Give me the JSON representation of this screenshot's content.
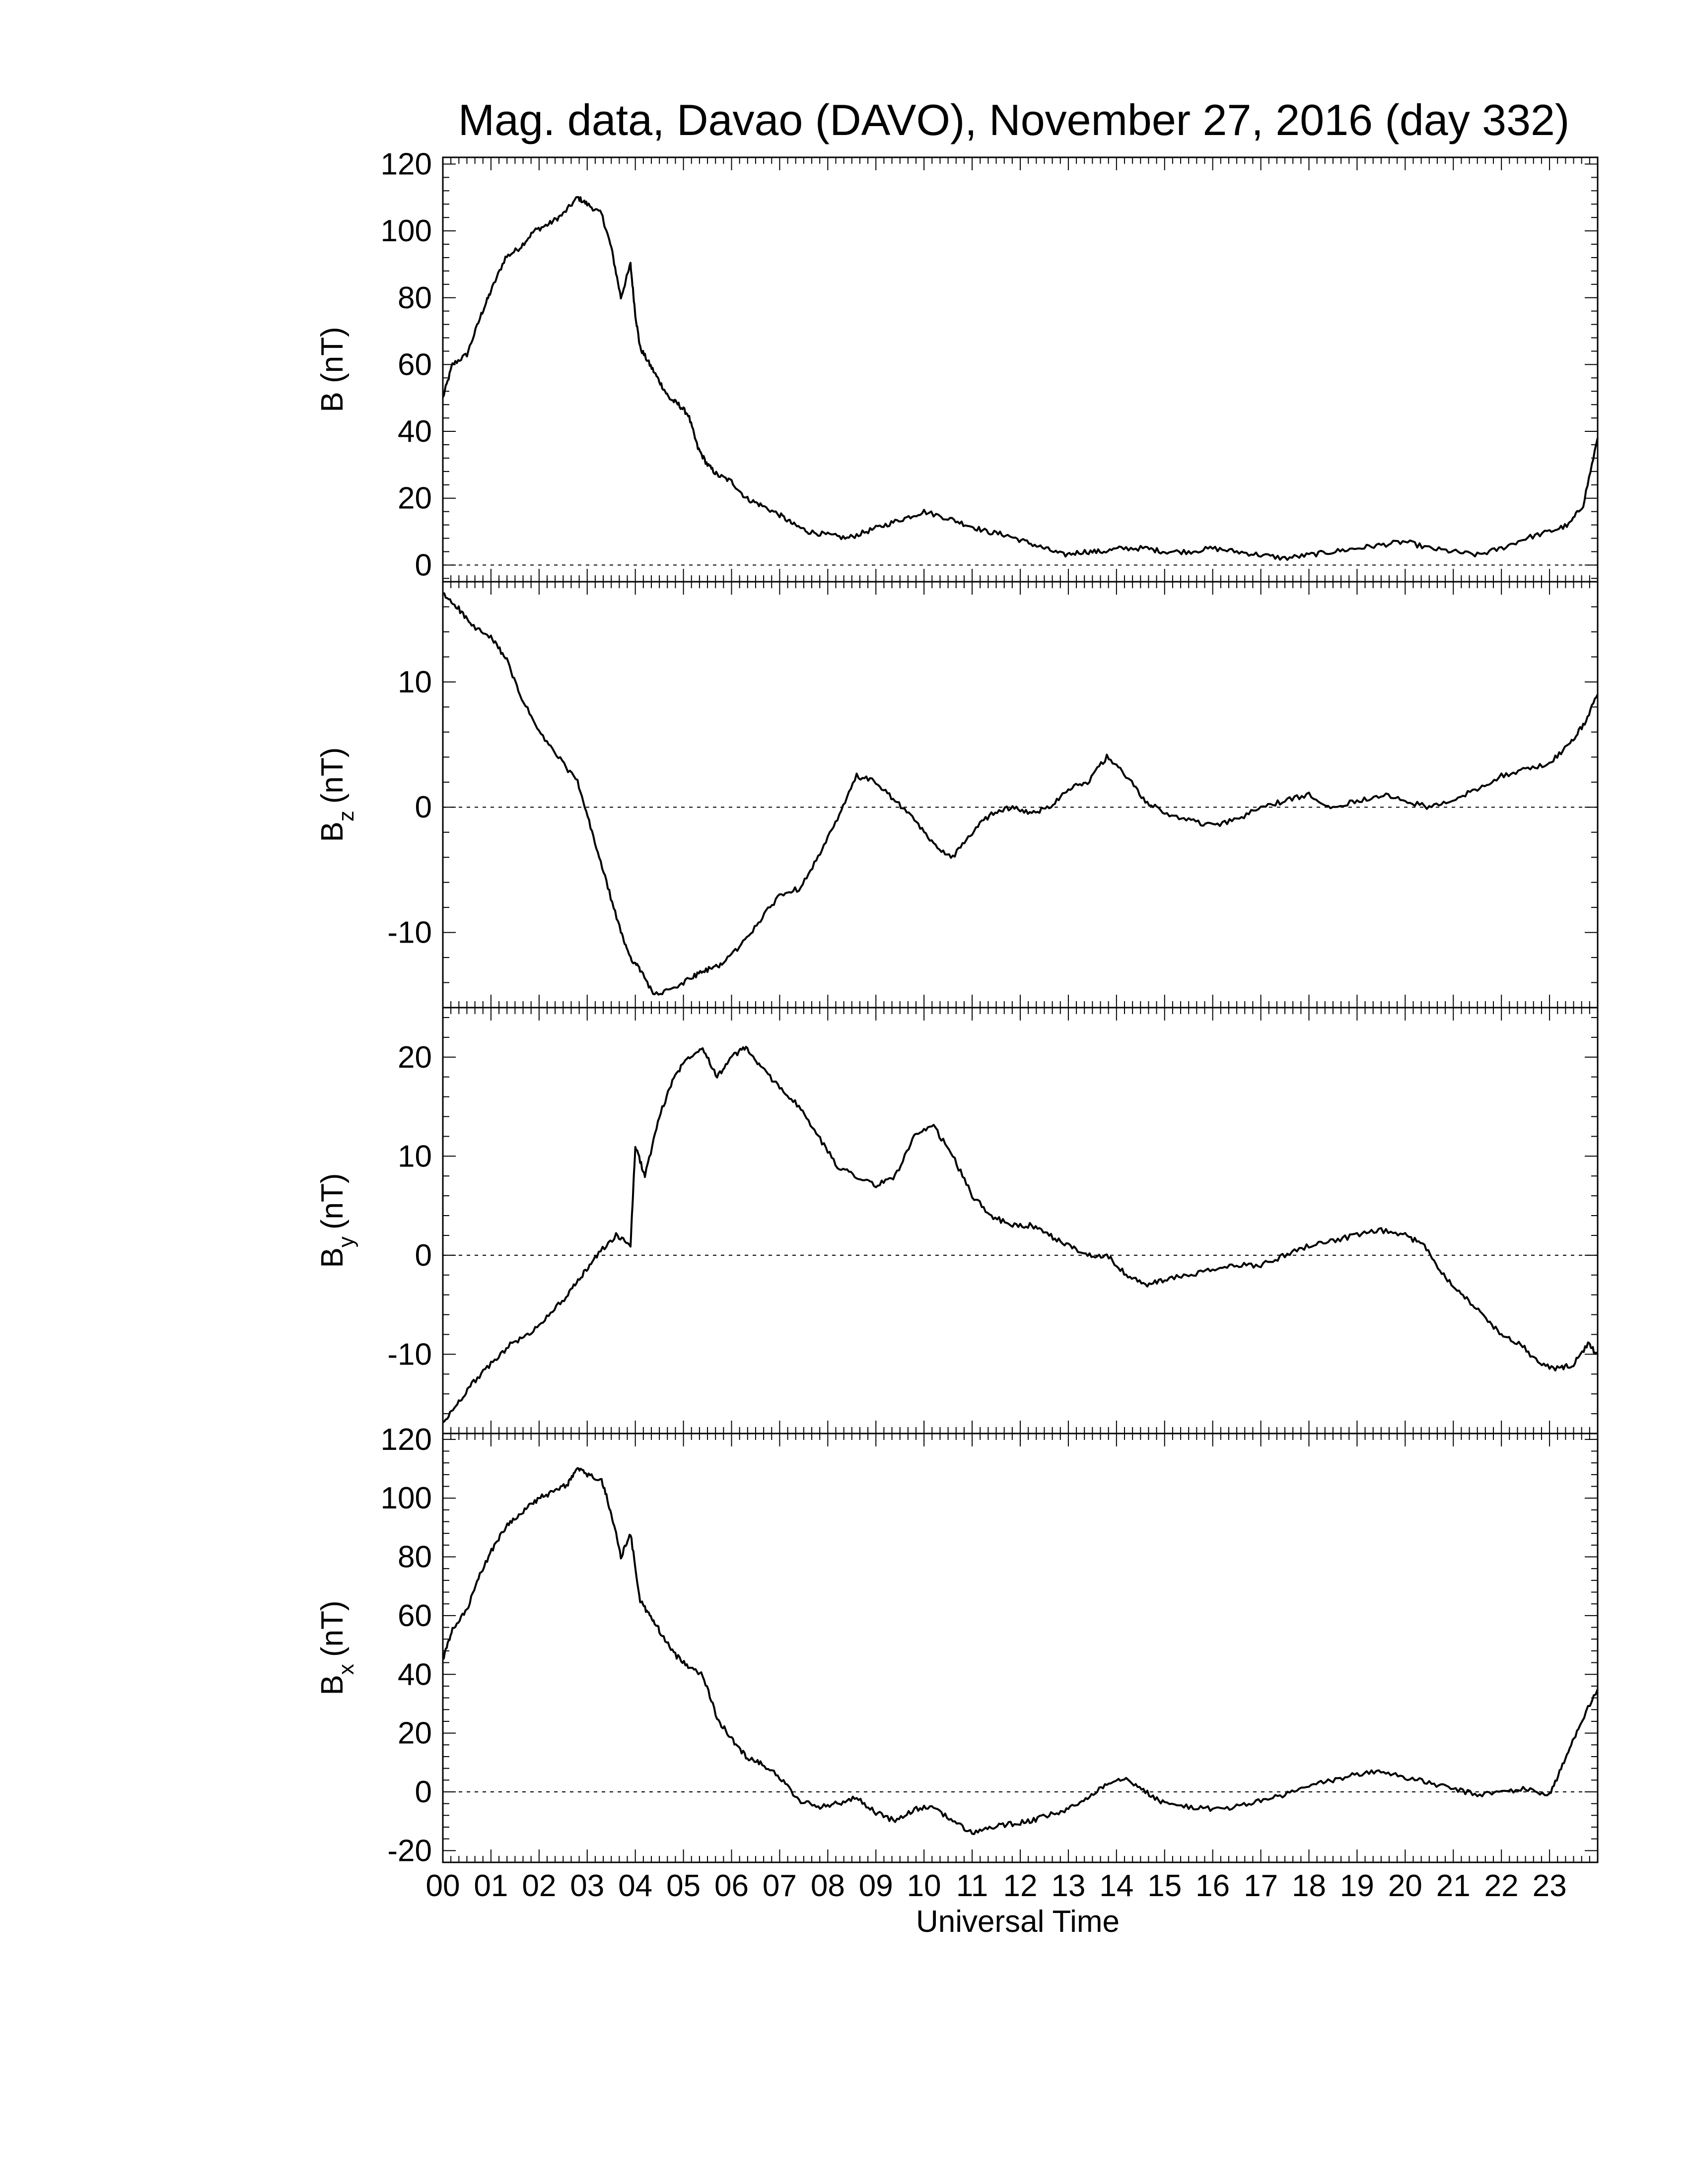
{
  "title": "Mag. data, Davao (DAVO), November 27, 2016 (day 332)",
  "xlabel": "Universal Time",
  "x_tick_labels": [
    "00",
    "01",
    "02",
    "03",
    "04",
    "05",
    "06",
    "07",
    "08",
    "09",
    "10",
    "11",
    "12",
    "13",
    "14",
    "15",
    "16",
    "17",
    "18",
    "19",
    "20",
    "21",
    "22",
    "23"
  ],
  "chart_data": [
    {
      "type": "line",
      "ylabel": "B (nT)",
      "ylim": [
        -5,
        122
      ],
      "yticks": [
        0,
        20,
        40,
        60,
        80,
        100,
        120
      ],
      "zero_line": true,
      "x_unit": "hour UT",
      "xlim": [
        0,
        24
      ],
      "x": [
        0,
        0.2,
        0.5,
        0.8,
        1.0,
        1.3,
        1.6,
        1.9,
        2.2,
        2.5,
        2.8,
        3.0,
        3.3,
        3.5,
        3.7,
        3.9,
        4.0,
        4.1,
        4.3,
        4.5,
        4.7,
        4.9,
        5.1,
        5.3,
        5.5,
        5.7,
        6.0,
        6.3,
        6.6,
        7.0,
        7.3,
        7.6,
        8.0,
        8.4,
        8.8,
        9.2,
        9.6,
        10.0,
        10.5,
        10.9,
        11.3,
        11.7,
        12.1,
        12.5,
        12.9,
        13.3,
        13.7,
        14.1,
        14.6,
        15.0,
        15.5,
        16.0,
        16.5,
        17.0,
        17.5,
        18.0,
        18.5,
        19.0,
        19.5,
        20.0,
        20.5,
        21.0,
        21.5,
        22.0,
        22.5,
        23.0,
        23.4,
        23.7,
        24.0
      ],
      "series": [
        {
          "values": [
            50,
            60,
            63,
            75,
            82,
            92,
            95,
            100,
            102,
            105,
            110,
            108,
            105,
            95,
            80,
            90,
            75,
            65,
            60,
            55,
            50,
            48,
            45,
            35,
            30,
            27,
            25,
            20,
            18,
            15,
            12,
            10,
            9,
            8,
            10,
            12,
            14,
            16,
            14,
            12,
            10,
            9,
            7,
            5,
            3,
            4,
            4,
            5,
            5,
            4,
            4,
            5,
            4,
            3,
            2,
            3,
            4,
            5,
            6,
            7,
            5,
            4,
            3,
            5,
            8,
            10,
            12,
            18,
            38
          ]
        }
      ]
    },
    {
      "type": "line",
      "ylabel": "B",
      "ylabel_sub": "z",
      "ylabel_unit": "(nT)",
      "ylim": [
        -16,
        18
      ],
      "yticks": [
        -10,
        0,
        10
      ],
      "zero_line": true,
      "x_unit": "hour UT",
      "xlim": [
        0,
        24
      ],
      "x": [
        0,
        0.3,
        0.6,
        1.0,
        1.3,
        1.6,
        2.0,
        2.4,
        2.8,
        3.1,
        3.4,
        3.7,
        3.9,
        4.1,
        4.4,
        4.8,
        5.2,
        5.5,
        5.8,
        6.2,
        6.6,
        7.0,
        7.4,
        7.8,
        8.2,
        8.6,
        9.0,
        9.4,
        9.8,
        10.2,
        10.6,
        11.0,
        11.4,
        11.8,
        12.2,
        12.6,
        13.0,
        13.4,
        13.8,
        14.2,
        14.6,
        15.0,
        15.5,
        16.0,
        16.5,
        17.0,
        17.5,
        18.0,
        18.5,
        19.0,
        19.5,
        20.0,
        20.5,
        21.0,
        21.5,
        22.0,
        22.5,
        23.0,
        23.4,
        23.7,
        24.0
      ],
      "series": [
        {
          "values": [
            17,
            16,
            14.5,
            13.5,
            12,
            9,
            6,
            4,
            2,
            -2,
            -6,
            -10,
            -12,
            -13,
            -15,
            -14.5,
            -13.5,
            -13,
            -12.5,
            -11,
            -9,
            -7,
            -6.5,
            -4,
            -1,
            2.5,
            2,
            0.5,
            -1,
            -3,
            -4,
            -2,
            -0.5,
            0,
            -0.5,
            0,
            1.5,
            2,
            4,
            2.5,
            0.5,
            -0.5,
            -1,
            -1.5,
            -1,
            0,
            0.5,
            1,
            0,
            0.5,
            1,
            0.5,
            0,
            0.5,
            1.5,
            2.5,
            3,
            3.5,
            5,
            6.5,
            9
          ]
        }
      ]
    },
    {
      "type": "line",
      "ylabel": "B",
      "ylabel_sub": "y",
      "ylabel_unit": "(nT)",
      "ylim": [
        -18,
        25
      ],
      "yticks": [
        -10,
        0,
        10,
        20
      ],
      "zero_line": true,
      "x_unit": "hour UT",
      "xlim": [
        0,
        24
      ],
      "x": [
        0,
        0.3,
        0.6,
        1.0,
        1.4,
        1.8,
        2.2,
        2.6,
        2.9,
        3.2,
        3.6,
        3.9,
        4.0,
        4.2,
        4.5,
        4.8,
        5.1,
        5.4,
        5.7,
        6.0,
        6.3,
        6.6,
        7.0,
        7.4,
        7.8,
        8.2,
        8.6,
        9.0,
        9.4,
        9.8,
        10.2,
        10.6,
        11.0,
        11.4,
        11.8,
        12.2,
        12.6,
        13.0,
        13.4,
        13.8,
        14.2,
        14.6,
        15.0,
        15.5,
        16.0,
        16.5,
        17.0,
        17.5,
        18.0,
        18.5,
        19.0,
        19.5,
        20.0,
        20.4,
        20.8,
        21.2,
        21.6,
        22.0,
        22.4,
        22.8,
        23.2,
        23.5,
        23.8,
        24.0
      ],
      "series": [
        {
          "values": [
            -17,
            -15,
            -13,
            -11,
            -9,
            -8,
            -6,
            -4,
            -2,
            0,
            2,
            1,
            11,
            8,
            14,
            18,
            20,
            21,
            18,
            20,
            21,
            19,
            17,
            15,
            12,
            9,
            8,
            7,
            8,
            12,
            13,
            10,
            6,
            4,
            3,
            3,
            2,
            1,
            0,
            0,
            -2,
            -3,
            -2.5,
            -2,
            -1.5,
            -1,
            -1,
            0,
            1,
            1.5,
            2,
            2.5,
            2,
            1,
            -2,
            -4,
            -6,
            -8,
            -9,
            -11,
            -11.5,
            -11,
            -9,
            -10
          ]
        }
      ]
    },
    {
      "type": "line",
      "ylabel": "B",
      "ylabel_sub": "x",
      "ylabel_unit": "(nT)",
      "ylim": [
        -24,
        122
      ],
      "yticks": [
        -20,
        0,
        20,
        40,
        60,
        80,
        100,
        120
      ],
      "zero_line": true,
      "x_unit": "hour UT",
      "xlim": [
        0,
        24
      ],
      "x": [
        0,
        0.2,
        0.5,
        0.8,
        1.1,
        1.4,
        1.7,
        2.0,
        2.3,
        2.6,
        2.8,
        3.0,
        3.3,
        3.5,
        3.7,
        3.9,
        4.1,
        4.3,
        4.5,
        4.8,
        5.1,
        5.4,
        5.7,
        6.0,
        6.3,
        6.6,
        7.0,
        7.4,
        7.8,
        8.2,
        8.6,
        9.0,
        9.4,
        9.8,
        10.2,
        10.6,
        11.0,
        11.4,
        11.8,
        12.2,
        12.6,
        13.0,
        13.4,
        13.8,
        14.2,
        14.6,
        15.0,
        15.5,
        16.0,
        16.5,
        17.0,
        17.5,
        18.0,
        18.5,
        19.0,
        19.5,
        20.0,
        20.5,
        21.0,
        21.5,
        22.0,
        22.5,
        23.0,
        23.3,
        23.6,
        24.0
      ],
      "series": [
        {
          "values": [
            45,
            55,
            62,
            75,
            85,
            92,
            96,
            100,
            102,
            105,
            110,
            108,
            106,
            95,
            80,
            88,
            65,
            60,
            55,
            47,
            43,
            40,
            25,
            18,
            12,
            10,
            5,
            -3,
            -5,
            -4,
            -2,
            -7,
            -10,
            -6,
            -5,
            -10,
            -14,
            -12,
            -11,
            -10,
            -8,
            -6,
            -2,
            3,
            5,
            0,
            -4,
            -5,
            -6,
            -5,
            -3,
            -1,
            2,
            4,
            6,
            7,
            5,
            3,
            1,
            -1,
            0,
            1,
            -1,
            10,
            22,
            35
          ]
        }
      ]
    }
  ]
}
